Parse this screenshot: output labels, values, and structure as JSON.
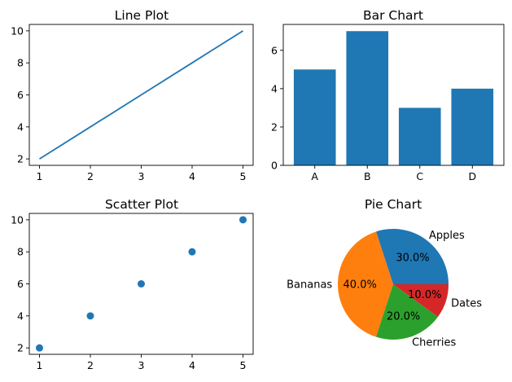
{
  "chart_data": [
    {
      "type": "line",
      "title": "Line Plot",
      "x": [
        1,
        2,
        3,
        4,
        5
      ],
      "y": [
        2,
        4,
        6,
        8,
        10
      ],
      "xticks": [
        "1",
        "2",
        "3",
        "4",
        "5"
      ],
      "yticks": [
        "2",
        "4",
        "6",
        "8",
        "10"
      ],
      "xlim": [
        0.8,
        5.2
      ],
      "ylim": [
        1.6,
        10.4
      ],
      "color": "#1f77b4",
      "grid": false
    },
    {
      "type": "bar",
      "title": "Bar Chart",
      "categories": [
        "A",
        "B",
        "C",
        "D"
      ],
      "values": [
        5,
        7,
        3,
        4
      ],
      "yticks": [
        "0",
        "2",
        "4",
        "6"
      ],
      "ylim": [
        0,
        7.35
      ],
      "color": "#1f77b4",
      "grid": false
    },
    {
      "type": "scatter",
      "title": "Scatter Plot",
      "x": [
        1,
        2,
        3,
        4,
        5
      ],
      "y": [
        2,
        4,
        6,
        8,
        10
      ],
      "xticks": [
        "1",
        "2",
        "3",
        "4",
        "5"
      ],
      "yticks": [
        "2",
        "4",
        "6",
        "8",
        "10"
      ],
      "xlim": [
        0.8,
        5.2
      ],
      "ylim": [
        1.6,
        10.4
      ],
      "color": "#1f77b4",
      "grid": false
    },
    {
      "type": "pie",
      "title": "Pie Chart",
      "labels": [
        "Apples",
        "Bananas",
        "Cherries",
        "Dates"
      ],
      "values": [
        30,
        40,
        20,
        10
      ],
      "percent_labels": [
        "30.0%",
        "40.0%",
        "20.0%",
        "10.0%"
      ],
      "colors": [
        "#1f77b4",
        "#ff7f0e",
        "#2ca02c",
        "#d62728"
      ]
    }
  ]
}
